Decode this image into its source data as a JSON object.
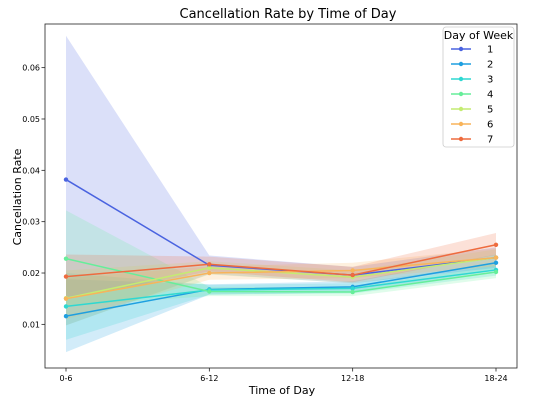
{
  "chart_data": {
    "type": "line",
    "title": "Cancellation Rate by Time of Day",
    "xlabel": "Time of Day",
    "ylabel": "Cancellation Rate",
    "categories": [
      "0-6",
      "6-12",
      "12-18",
      "18-24"
    ],
    "yticks": [
      "0.01",
      "0.02",
      "0.03",
      "0.04",
      "0.05",
      "0.06"
    ],
    "ylim": [
      0.0015,
      0.0685
    ],
    "grid": false,
    "legend": {
      "title": "Day of Week",
      "position": "top-right"
    },
    "series": [
      {
        "name": "1",
        "color": "#4A63E0",
        "values": [
          0.0382,
          0.0215,
          0.0196,
          0.023
        ],
        "ci_low": [
          0.0098,
          0.0198,
          0.018,
          0.021
        ],
        "ci_high": [
          0.0662,
          0.0234,
          0.0212,
          0.025
        ]
      },
      {
        "name": "2",
        "color": "#1E9FE0",
        "values": [
          0.0116,
          0.0168,
          0.0173,
          0.022
        ],
        "ci_low": [
          0.0046,
          0.0158,
          0.0162,
          0.0205
        ],
        "ci_high": [
          0.0188,
          0.0178,
          0.0184,
          0.0236
        ]
      },
      {
        "name": "3",
        "color": "#2ED8D2",
        "values": [
          0.0135,
          0.0167,
          0.017,
          0.0206
        ],
        "ci_low": [
          0.007,
          0.0158,
          0.016,
          0.0195
        ],
        "ci_high": [
          0.02,
          0.0177,
          0.018,
          0.0218
        ]
      },
      {
        "name": "4",
        "color": "#66EE9A",
        "values": [
          0.0228,
          0.0164,
          0.0163,
          0.0202
        ],
        "ci_low": [
          0.0136,
          0.0155,
          0.0155,
          0.019
        ],
        "ci_high": [
          0.0322,
          0.0173,
          0.0172,
          0.0215
        ]
      },
      {
        "name": "5",
        "color": "#C4EC72",
        "values": [
          0.0151,
          0.021,
          0.0192,
          0.023
        ],
        "ci_low": [
          0.0098,
          0.0197,
          0.018,
          0.0214
        ],
        "ci_high": [
          0.0205,
          0.0223,
          0.0205,
          0.0246
        ]
      },
      {
        "name": "6",
        "color": "#F8B45A",
        "values": [
          0.015,
          0.02,
          0.0205,
          0.023
        ],
        "ci_low": [
          0.011,
          0.0187,
          0.019,
          0.0213
        ],
        "ci_high": [
          0.019,
          0.0213,
          0.022,
          0.0248
        ]
      },
      {
        "name": "7",
        "color": "#EE6B3E",
        "values": [
          0.0193,
          0.0217,
          0.0196,
          0.0255
        ],
        "ci_low": [
          0.015,
          0.0203,
          0.0182,
          0.0235
        ],
        "ci_high": [
          0.0236,
          0.0232,
          0.0212,
          0.0278
        ]
      }
    ]
  }
}
